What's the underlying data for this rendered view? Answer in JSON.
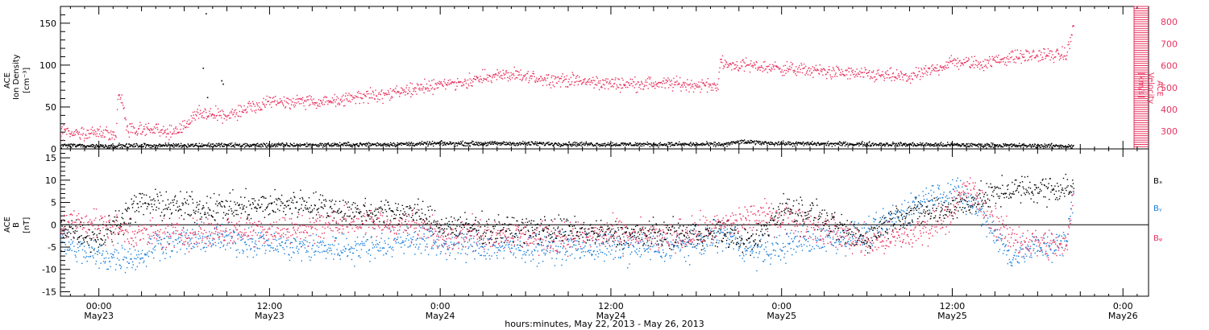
{
  "colors": {
    "black": "#000000",
    "blue": "#1a7fd9",
    "red": "#e8335f"
  },
  "footer": "hours:minutes, May 22, 2013 - May 26, 2013",
  "time_axis": {
    "ticks": [
      {
        "time": "00:00",
        "date": "May23",
        "hour": 0
      },
      {
        "time": "12:00",
        "date": "May23",
        "hour": 12
      },
      {
        "time": "0:00",
        "date": "May24",
        "hour": 24
      },
      {
        "time": "12:00",
        "date": "May24",
        "hour": 36
      },
      {
        "time": "0:00",
        "date": "May25",
        "hour": 48
      },
      {
        "time": "12:00",
        "date": "May25",
        "hour": 60
      },
      {
        "time": "0:00",
        "date": "May26",
        "hour": 72
      }
    ],
    "range_hours_from_May23_0000": [
      -2.7,
      73.8
    ],
    "data_end_hour": 68.5
  },
  "chart_data": [
    {
      "type": "scatter",
      "panel": "top",
      "ylabel": [
        "ACE",
        "Ion Density",
        "[cm⁻³]"
      ],
      "ylim": [
        0,
        170
      ],
      "yticks": [
        0,
        50,
        100,
        150
      ],
      "y2label": [
        "ACE",
        "Velocity",
        "[km/s]"
      ],
      "y2lim": [
        220,
        870
      ],
      "y2ticks": [
        300,
        400,
        500,
        600,
        700,
        800
      ],
      "series": [
        {
          "name": "density",
          "color": "black",
          "axis": "left",
          "profile": [
            [
              -2.7,
              5
            ],
            [
              0,
              4
            ],
            [
              6,
              5
            ],
            [
              12,
              5
            ],
            [
              20,
              6
            ],
            [
              24,
              7
            ],
            [
              30,
              7
            ],
            [
              36,
              6
            ],
            [
              44,
              6
            ],
            [
              45,
              9
            ],
            [
              48,
              7
            ],
            [
              56,
              6
            ],
            [
              62,
              5
            ],
            [
              68,
              4
            ],
            [
              68.5,
              4
            ]
          ],
          "spikes": [
            [
              7.5,
              162
            ],
            [
              7.3,
              97
            ],
            [
              8.6,
              82
            ],
            [
              8.7,
              78
            ],
            [
              7.6,
              62
            ]
          ]
        },
        {
          "name": "velocity",
          "color": "red",
          "axis": "right",
          "profile": [
            [
              -2.7,
              300
            ],
            [
              0,
              295
            ],
            [
              1.2,
              280
            ],
            [
              1.3,
              470
            ],
            [
              1.6,
              450
            ],
            [
              2,
              300
            ],
            [
              3.5,
              320
            ],
            [
              5,
              300
            ],
            [
              6,
              320
            ],
            [
              7,
              390
            ],
            [
              9,
              370
            ],
            [
              10,
              400
            ],
            [
              12,
              430
            ],
            [
              14,
              440
            ],
            [
              16,
              430
            ],
            [
              16.2,
              440
            ],
            [
              18,
              460
            ],
            [
              20,
              470
            ],
            [
              22,
              490
            ],
            [
              24,
              520
            ],
            [
              26,
              530
            ],
            [
              28,
              560
            ],
            [
              30,
              550
            ],
            [
              32,
              540
            ],
            [
              36,
              520
            ],
            [
              40,
              520
            ],
            [
              43.5,
              510
            ],
            [
              43.6,
              610
            ],
            [
              46,
              600
            ],
            [
              50,
              580
            ],
            [
              54,
              560
            ],
            [
              57,
              550
            ],
            [
              58.5,
              580
            ],
            [
              60,
              620
            ],
            [
              62,
              610
            ],
            [
              64,
              640
            ],
            [
              66,
              650
            ],
            [
              68,
              650
            ],
            [
              68.5,
              780
            ]
          ]
        }
      ]
    },
    {
      "type": "scatter",
      "panel": "bottom",
      "ylabel": [
        "ACE",
        "B",
        "[nT]"
      ],
      "ylim": [
        -16,
        17
      ],
      "yticks": [
        -15,
        -10,
        -5,
        0,
        5,
        10,
        15
      ],
      "series": [
        {
          "name": "Bₓ",
          "color": "black",
          "profile": [
            [
              -2.7,
              0
            ],
            [
              -1,
              -2
            ],
            [
              0,
              -3
            ],
            [
              2,
              3
            ],
            [
              3,
              5
            ],
            [
              6,
              4
            ],
            [
              10,
              4
            ],
            [
              14,
              5
            ],
            [
              18,
              3
            ],
            [
              22,
              3
            ],
            [
              24,
              0
            ],
            [
              28,
              -1
            ],
            [
              32,
              -1
            ],
            [
              36,
              -2
            ],
            [
              40,
              -2
            ],
            [
              44,
              -2
            ],
            [
              46,
              -4
            ],
            [
              48,
              4
            ],
            [
              50,
              3
            ],
            [
              52,
              -1
            ],
            [
              54,
              -3
            ],
            [
              56,
              2
            ],
            [
              58,
              3
            ],
            [
              60,
              4
            ],
            [
              62,
              6
            ],
            [
              64,
              8
            ],
            [
              66,
              8
            ],
            [
              68,
              8.5
            ],
            [
              68.5,
              8
            ]
          ]
        },
        {
          "name": "Bᵧ",
          "color": "blue",
          "profile": [
            [
              -2.7,
              -4
            ],
            [
              -1,
              -6
            ],
            [
              0,
              -7
            ],
            [
              3,
              -7
            ],
            [
              4,
              -4
            ],
            [
              8,
              -3
            ],
            [
              12,
              -4
            ],
            [
              14,
              -5
            ],
            [
              18,
              -5
            ],
            [
              22,
              -3
            ],
            [
              24,
              -4
            ],
            [
              28,
              -5
            ],
            [
              32,
              -5
            ],
            [
              36,
              -5
            ],
            [
              40,
              -5
            ],
            [
              42,
              -4
            ],
            [
              44,
              -2
            ],
            [
              46,
              -6
            ],
            [
              48,
              -5
            ],
            [
              50,
              -3
            ],
            [
              52,
              -3
            ],
            [
              54,
              -2
            ],
            [
              56,
              2
            ],
            [
              58,
              6
            ],
            [
              60,
              8
            ],
            [
              62,
              3
            ],
            [
              64,
              -7
            ],
            [
              66,
              -5
            ],
            [
              68,
              -4
            ],
            [
              68.5,
              8
            ]
          ]
        },
        {
          "name": "Bᵩ",
          "color": "red",
          "profile": [
            [
              -2.7,
              0
            ],
            [
              -1,
              1
            ],
            [
              0,
              0
            ],
            [
              3,
              -2
            ],
            [
              6,
              -2
            ],
            [
              10,
              -1
            ],
            [
              14,
              -1
            ],
            [
              18,
              1
            ],
            [
              22,
              0
            ],
            [
              24,
              -2
            ],
            [
              28,
              -2
            ],
            [
              32,
              -3
            ],
            [
              36,
              -2
            ],
            [
              40,
              -3
            ],
            [
              44,
              0
            ],
            [
              46,
              2
            ],
            [
              48,
              2
            ],
            [
              50,
              0
            ],
            [
              52,
              -2
            ],
            [
              54,
              -4
            ],
            [
              56,
              -3
            ],
            [
              58,
              -1
            ],
            [
              60,
              3
            ],
            [
              61,
              9
            ],
            [
              62,
              5
            ],
            [
              64,
              -3
            ],
            [
              66,
              -4
            ],
            [
              68,
              -5
            ],
            [
              68.5,
              7
            ]
          ]
        }
      ]
    }
  ]
}
